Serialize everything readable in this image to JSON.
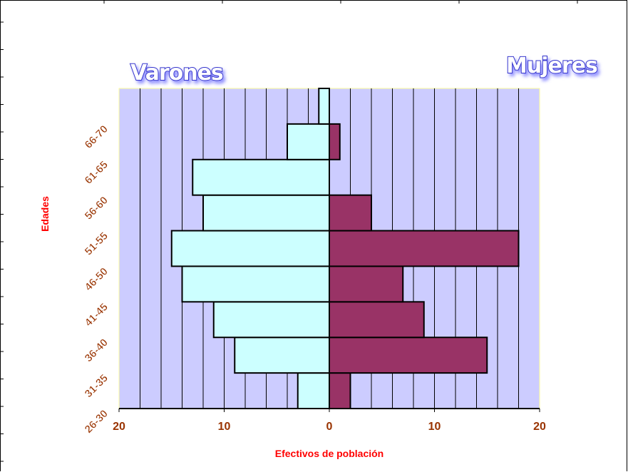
{
  "chart_data": {
    "type": "bar",
    "orientation": "horizontal",
    "subtype": "population-pyramid",
    "categories": [
      "26-30",
      "31-35",
      "36-40",
      "41-45",
      "46-50",
      "51-55",
      "56-60",
      "61-65",
      "66-70"
    ],
    "series": [
      {
        "name": "Varones",
        "side": "left",
        "color": "#ccffff",
        "values": [
          3,
          9,
          11,
          14,
          15,
          12,
          13,
          4,
          1
        ]
      },
      {
        "name": "Mujeres",
        "side": "right",
        "color": "#993366",
        "values": [
          2,
          15,
          9,
          7,
          18,
          4,
          0,
          1,
          0
        ]
      }
    ],
    "left_title": "Varones",
    "right_title": "Mujeres",
    "xlabel": "Efectivos de población",
    "ylabel": "Edades",
    "xlim": [
      -20,
      20
    ],
    "x_ticks": [
      "20",
      "10",
      "0",
      "10",
      "20"
    ],
    "grid_step": 2,
    "grid": true,
    "legend": "none",
    "plot_bg": "#ccccff",
    "grid_color": "#000000",
    "label_color": "#993300",
    "axis_title_color": "#ff0000",
    "title_color": "#6666ff"
  }
}
